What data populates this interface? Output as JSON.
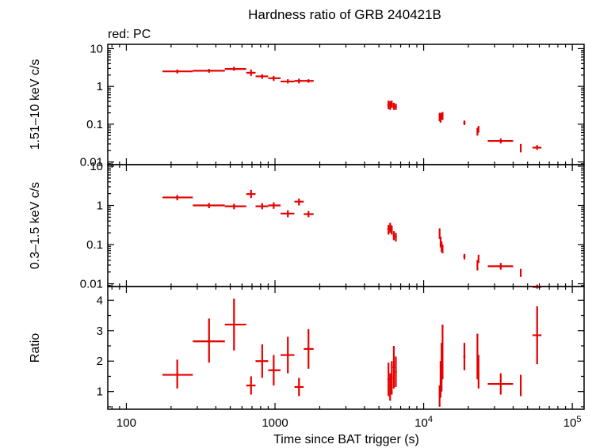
{
  "chart_data": {
    "type": "scatter",
    "title": "Hardness ratio of GRB 240421B",
    "note": "red: PC",
    "xlabel": "Time since BAT trigger (s)",
    "x_scale": "log",
    "xlim": [
      75,
      120000
    ],
    "x_ticks": [
      {
        "v": 100,
        "t": "100"
      },
      {
        "v": 1000,
        "t": "1000"
      },
      {
        "v": 10000,
        "t": "10",
        "sup": "4"
      },
      {
        "v": 100000,
        "t": "10",
        "sup": "5"
      }
    ],
    "panels": [
      {
        "id": "hard",
        "ylabel": "1.51–10 keV c/s",
        "y_scale": "log",
        "ylim": [
          0.0085,
          13
        ],
        "y_ticks": [
          {
            "v": 0.01,
            "t": "0.01"
          },
          {
            "v": 0.1,
            "t": "0.1"
          },
          {
            "v": 1,
            "t": "1"
          },
          {
            "v": 10,
            "t": "10"
          }
        ],
        "points": [
          {
            "x": 220,
            "xl": 175,
            "xh": 280,
            "y": 2.5,
            "yl": 2.2,
            "yh": 2.8
          },
          {
            "x": 360,
            "xl": 280,
            "xh": 460,
            "y": 2.6,
            "yl": 2.3,
            "yh": 2.9
          },
          {
            "x": 530,
            "xl": 460,
            "xh": 640,
            "y": 2.9,
            "yl": 2.6,
            "yh": 3.3
          },
          {
            "x": 690,
            "xl": 640,
            "xh": 740,
            "y": 2.3,
            "yl": 1.9,
            "yh": 2.8
          },
          {
            "x": 820,
            "xl": 740,
            "xh": 900,
            "y": 1.85,
            "yl": 1.6,
            "yh": 2.1
          },
          {
            "x": 980,
            "xl": 900,
            "xh": 1090,
            "y": 1.65,
            "yl": 1.4,
            "yh": 1.9
          },
          {
            "x": 1220,
            "xl": 1090,
            "xh": 1350,
            "y": 1.35,
            "yl": 1.2,
            "yh": 1.55
          },
          {
            "x": 1450,
            "xl": 1350,
            "xh": 1560,
            "y": 1.4,
            "yl": 1.2,
            "yh": 1.6
          },
          {
            "x": 1680,
            "xl": 1560,
            "xh": 1820,
            "y": 1.4,
            "yl": 1.25,
            "yh": 1.55
          },
          {
            "x": 5800,
            "xl": 5700,
            "xh": 5900,
            "y": 0.33,
            "yl": 0.25,
            "yh": 0.42
          },
          {
            "x": 5950,
            "xl": 5900,
            "xh": 6000,
            "y": 0.32,
            "yl": 0.24,
            "yh": 0.41
          },
          {
            "x": 6100,
            "xl": 6000,
            "xh": 6200,
            "y": 0.34,
            "yl": 0.27,
            "yh": 0.42
          },
          {
            "x": 6300,
            "xl": 6200,
            "xh": 6400,
            "y": 0.3,
            "yl": 0.24,
            "yh": 0.37
          },
          {
            "x": 6500,
            "xl": 6400,
            "xh": 6600,
            "y": 0.29,
            "yl": 0.24,
            "yh": 0.35
          },
          {
            "x": 12800,
            "xl": 12700,
            "xh": 12900,
            "y": 0.16,
            "yl": 0.12,
            "yh": 0.2
          },
          {
            "x": 13000,
            "xl": 12900,
            "xh": 13100,
            "y": 0.15,
            "yl": 0.11,
            "yh": 0.19
          },
          {
            "x": 13200,
            "xl": 13100,
            "xh": 13300,
            "y": 0.16,
            "yl": 0.13,
            "yh": 0.2
          },
          {
            "x": 13400,
            "xl": 13300,
            "xh": 13500,
            "y": 0.17,
            "yl": 0.13,
            "yh": 0.21
          },
          {
            "x": 18800,
            "xl": 18500,
            "xh": 19100,
            "y": 0.11,
            "yl": 0.095,
            "yh": 0.125
          },
          {
            "x": 23000,
            "xl": 22800,
            "xh": 23200,
            "y": 0.065,
            "yl": 0.05,
            "yh": 0.08
          },
          {
            "x": 23400,
            "xl": 23200,
            "xh": 23600,
            "y": 0.075,
            "yl": 0.06,
            "yh": 0.09
          },
          {
            "x": 33000,
            "xl": 27000,
            "xh": 40000,
            "y": 0.036,
            "yl": 0.031,
            "yh": 0.042
          },
          {
            "x": 45000,
            "xl": 44500,
            "xh": 45500,
            "y": 0.024,
            "yl": 0.018,
            "yh": 0.03
          },
          {
            "x": 58000,
            "xl": 54000,
            "xh": 62000,
            "y": 0.024,
            "yl": 0.021,
            "yh": 0.028
          }
        ]
      },
      {
        "id": "soft",
        "ylabel": "0.3–1.5 keV c/s",
        "y_scale": "log",
        "ylim": [
          0.0085,
          11
        ],
        "y_ticks": [
          {
            "v": 0.01,
            "t": "0.01"
          },
          {
            "v": 0.1,
            "t": "0.1"
          },
          {
            "v": 1,
            "t": "1"
          },
          {
            "v": 10,
            "t": "10"
          }
        ],
        "points": [
          {
            "x": 220,
            "xl": 175,
            "xh": 280,
            "y": 1.6,
            "yl": 1.35,
            "yh": 1.85
          },
          {
            "x": 360,
            "xl": 280,
            "xh": 460,
            "y": 1.0,
            "yl": 0.85,
            "yh": 1.15
          },
          {
            "x": 530,
            "xl": 460,
            "xh": 640,
            "y": 0.95,
            "yl": 0.8,
            "yh": 1.1
          },
          {
            "x": 690,
            "xl": 640,
            "xh": 740,
            "y": 1.95,
            "yl": 1.55,
            "yh": 2.5
          },
          {
            "x": 820,
            "xl": 740,
            "xh": 900,
            "y": 0.95,
            "yl": 0.8,
            "yh": 1.15
          },
          {
            "x": 980,
            "xl": 900,
            "xh": 1090,
            "y": 1.0,
            "yl": 0.82,
            "yh": 1.2
          },
          {
            "x": 1220,
            "xl": 1090,
            "xh": 1350,
            "y": 0.62,
            "yl": 0.5,
            "yh": 0.75
          },
          {
            "x": 1450,
            "xl": 1350,
            "xh": 1560,
            "y": 1.25,
            "yl": 1.0,
            "yh": 1.5
          },
          {
            "x": 1680,
            "xl": 1560,
            "xh": 1820,
            "y": 0.6,
            "yl": 0.5,
            "yh": 0.72
          },
          {
            "x": 5800,
            "xl": 5700,
            "xh": 5900,
            "y": 0.25,
            "yl": 0.18,
            "yh": 0.32
          },
          {
            "x": 5950,
            "xl": 5900,
            "xh": 6000,
            "y": 0.28,
            "yl": 0.2,
            "yh": 0.36
          },
          {
            "x": 6100,
            "xl": 6000,
            "xh": 6200,
            "y": 0.24,
            "yl": 0.18,
            "yh": 0.31
          },
          {
            "x": 6300,
            "xl": 6200,
            "xh": 6400,
            "y": 0.17,
            "yl": 0.13,
            "yh": 0.22
          },
          {
            "x": 6500,
            "xl": 6400,
            "xh": 6600,
            "y": 0.16,
            "yl": 0.12,
            "yh": 0.2
          },
          {
            "x": 12800,
            "xl": 12700,
            "xh": 12900,
            "y": 0.2,
            "yl": 0.14,
            "yh": 0.26
          },
          {
            "x": 13000,
            "xl": 12900,
            "xh": 13100,
            "y": 0.12,
            "yl": 0.085,
            "yh": 0.16
          },
          {
            "x": 13200,
            "xl": 13100,
            "xh": 13300,
            "y": 0.09,
            "yl": 0.065,
            "yh": 0.12
          },
          {
            "x": 13400,
            "xl": 13300,
            "xh": 13500,
            "y": 0.08,
            "yl": 0.06,
            "yh": 0.1
          },
          {
            "x": 18800,
            "xl": 18500,
            "xh": 19100,
            "y": 0.05,
            "yl": 0.042,
            "yh": 0.058
          },
          {
            "x": 23000,
            "xl": 22800,
            "xh": 23200,
            "y": 0.03,
            "yl": 0.022,
            "yh": 0.04
          },
          {
            "x": 23400,
            "xl": 23200,
            "xh": 23600,
            "y": 0.045,
            "yl": 0.034,
            "yh": 0.055
          },
          {
            "x": 33000,
            "xl": 27000,
            "xh": 40000,
            "y": 0.028,
            "yl": 0.023,
            "yh": 0.034
          },
          {
            "x": 45000,
            "xl": 44500,
            "xh": 45500,
            "y": 0.019,
            "yl": 0.015,
            "yh": 0.024
          },
          {
            "x": 58000,
            "xl": 54000,
            "xh": 62000,
            "y": 0.0083,
            "yl": 0.0075,
            "yh": 0.0095
          }
        ]
      },
      {
        "id": "ratio",
        "ylabel": "Ratio",
        "y_scale": "linear",
        "ylim": [
          0.42,
          4.45
        ],
        "y_ticks": [
          {
            "v": 1,
            "t": "1"
          },
          {
            "v": 2,
            "t": "2"
          },
          {
            "v": 3,
            "t": "3"
          },
          {
            "v": 4,
            "t": "4"
          }
        ],
        "points": [
          {
            "x": 220,
            "xl": 175,
            "xh": 280,
            "y": 1.55,
            "yl": 1.1,
            "yh": 2.05
          },
          {
            "x": 360,
            "xl": 280,
            "xh": 460,
            "y": 2.65,
            "yl": 1.95,
            "yh": 3.4
          },
          {
            "x": 530,
            "xl": 460,
            "xh": 640,
            "y": 3.2,
            "yl": 2.35,
            "yh": 4.05
          },
          {
            "x": 690,
            "xl": 640,
            "xh": 740,
            "y": 1.2,
            "yl": 0.9,
            "yh": 1.5
          },
          {
            "x": 820,
            "xl": 740,
            "xh": 900,
            "y": 2.0,
            "yl": 1.45,
            "yh": 2.55
          },
          {
            "x": 980,
            "xl": 900,
            "xh": 1090,
            "y": 1.7,
            "yl": 1.2,
            "yh": 2.2
          },
          {
            "x": 1220,
            "xl": 1090,
            "xh": 1350,
            "y": 2.2,
            "yl": 1.6,
            "yh": 2.8
          },
          {
            "x": 1450,
            "xl": 1350,
            "xh": 1560,
            "y": 1.15,
            "yl": 0.85,
            "yh": 1.45
          },
          {
            "x": 1680,
            "xl": 1560,
            "xh": 1820,
            "y": 2.4,
            "yl": 1.75,
            "yh": 3.05
          },
          {
            "x": 5800,
            "xl": 5700,
            "xh": 5900,
            "y": 1.4,
            "yl": 0.85,
            "yh": 1.95
          },
          {
            "x": 5950,
            "xl": 5900,
            "xh": 6000,
            "y": 1.15,
            "yl": 0.7,
            "yh": 1.6
          },
          {
            "x": 6100,
            "xl": 6000,
            "xh": 6200,
            "y": 1.45,
            "yl": 0.9,
            "yh": 2.0
          },
          {
            "x": 6300,
            "xl": 6200,
            "xh": 6400,
            "y": 1.8,
            "yl": 1.1,
            "yh": 2.5
          },
          {
            "x": 6500,
            "xl": 6400,
            "xh": 6600,
            "y": 1.65,
            "yl": 1.15,
            "yh": 2.15
          },
          {
            "x": 12800,
            "xl": 12700,
            "xh": 12900,
            "y": 0.85,
            "yl": 0.5,
            "yh": 1.2
          },
          {
            "x": 13000,
            "xl": 12900,
            "xh": 13100,
            "y": 1.4,
            "yl": 0.8,
            "yh": 2.0
          },
          {
            "x": 13200,
            "xl": 13100,
            "xh": 13300,
            "y": 1.8,
            "yl": 1.0,
            "yh": 2.6
          },
          {
            "x": 13400,
            "xl": 13300,
            "xh": 13500,
            "y": 2.3,
            "yl": 1.4,
            "yh": 3.2
          },
          {
            "x": 18800,
            "xl": 18500,
            "xh": 19100,
            "y": 2.15,
            "yl": 1.7,
            "yh": 2.6
          },
          {
            "x": 23000,
            "xl": 22800,
            "xh": 23200,
            "y": 2.15,
            "yl": 1.4,
            "yh": 2.9
          },
          {
            "x": 23400,
            "xl": 23200,
            "xh": 23600,
            "y": 1.65,
            "yl": 1.1,
            "yh": 2.2
          },
          {
            "x": 33000,
            "xl": 27000,
            "xh": 40000,
            "y": 1.25,
            "yl": 0.9,
            "yh": 1.6
          },
          {
            "x": 45000,
            "xl": 44500,
            "xh": 45500,
            "y": 1.2,
            "yl": 0.85,
            "yh": 1.55
          },
          {
            "x": 58000,
            "xl": 54000,
            "xh": 62000,
            "y": 2.85,
            "yl": 1.9,
            "yh": 3.8
          }
        ]
      }
    ],
    "colors": {
      "series": "#e60000",
      "axes": "#000000"
    }
  }
}
